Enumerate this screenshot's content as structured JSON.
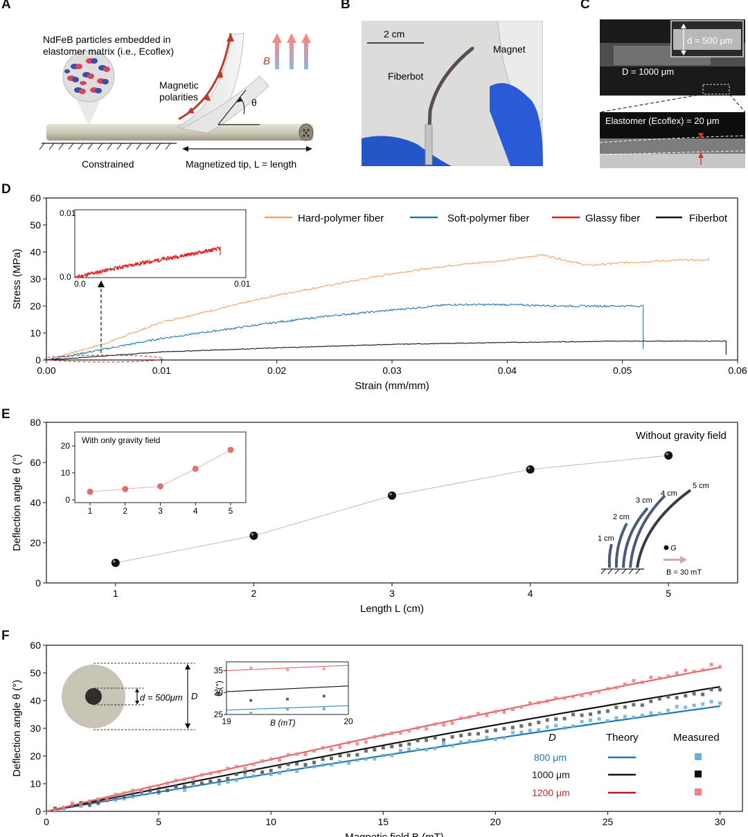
{
  "panels": {
    "A": {
      "letter": "A",
      "particles_label": "NdFeB particles embedded in elastomer matrix (i.e., Ecoflex)",
      "particles_line1": "NdFeB particles embedded in",
      "particles_line2": "elastomer matrix (i.e., Ecoflex)",
      "polarities_line1": "Magnetic",
      "polarities_line2": "polarities",
      "field_symbol": "B",
      "angle_symbol": "θ",
      "constrained_label": "Constrained",
      "tip_label": "Magnetized tip, L = length"
    },
    "B": {
      "letter": "B",
      "scale_label": "2 cm",
      "fiberbot_label": "Fiberbot",
      "magnet_label": "Magnet"
    },
    "C": {
      "letter": "C",
      "inner_label": "d = 500 μm",
      "outer_label": "D = 1000 μm",
      "elastomer_label": "Elastomer (Ecoflex) = 20 μm"
    }
  },
  "panel_D": {
    "letter": "D",
    "legend": [
      "Hard-polymer fiber",
      "Soft-polymer fiber",
      "Glassy fiber",
      "Fiberbot"
    ],
    "inset_ticks_x": [
      "0.0",
      "0.01"
    ],
    "inset_ticks_y": [
      "0.0",
      "0.01"
    ]
  },
  "panel_E": {
    "letter": "E",
    "main_note": "Without gravity field",
    "inset_title": "With only gravity field",
    "illustration_labels": [
      "1 cm",
      "2 cm",
      "3 cm",
      "4 cm",
      "5 cm"
    ],
    "gravity_symbol": "G",
    "field_label": "B = 30 mT"
  },
  "panel_F": {
    "letter": "F",
    "inner_d_label": "d = 500μm",
    "outer_D_label": "D",
    "legend_headers": [
      "D",
      "Theory",
      "Measured"
    ],
    "legend_rows": [
      {
        "label": "800 μm",
        "color": "#1f77b4",
        "light": "#6baed6"
      },
      {
        "label": "1000 μm",
        "color": "#000000",
        "light": "#555555"
      },
      {
        "label": "1200 μm",
        "color": "#d62728",
        "light": "#f08080"
      }
    ],
    "inset_ylabel": "θ (°)",
    "inset_xlabel": "B (mT)"
  },
  "colors": {
    "hard": "#f4a460",
    "soft": "#1f77b4",
    "glassy": "#e41a1c",
    "fiberbot": "#111111"
  },
  "chart_data": [
    {
      "id": "D",
      "type": "line",
      "title": "",
      "xlabel": "Strain (mm/mm)",
      "ylabel": "Stress (MPa)",
      "xlim": [
        0,
        0.06
      ],
      "ylim": [
        0,
        60
      ],
      "xticks": [
        "0.00",
        "0.01",
        "0.02",
        "0.03",
        "0.04",
        "0.05",
        "0.06"
      ],
      "yticks": [
        "0",
        "10",
        "20",
        "30",
        "40",
        "50",
        "60"
      ],
      "series": [
        {
          "name": "Hard-polymer fiber",
          "x": [
            0,
            0.005,
            0.01,
            0.015,
            0.02,
            0.025,
            0.03,
            0.035,
            0.04,
            0.043,
            0.045,
            0.047,
            0.05,
            0.055,
            0.0575
          ],
          "y": [
            0,
            6,
            14,
            19,
            24,
            28,
            32,
            35,
            37,
            39,
            37,
            35,
            36,
            37,
            38
          ]
        },
        {
          "name": "Soft-polymer fiber",
          "x": [
            0,
            0.005,
            0.01,
            0.015,
            0.02,
            0.025,
            0.03,
            0.035,
            0.04,
            0.045,
            0.05,
            0.0518,
            0.0518
          ],
          "y": [
            0,
            4,
            8,
            11,
            14,
            16.5,
            18.5,
            20.5,
            20.5,
            20,
            20,
            20,
            4
          ]
        },
        {
          "name": "Fiberbot",
          "x": [
            0,
            0.005,
            0.01,
            0.02,
            0.03,
            0.04,
            0.05,
            0.058,
            0.059,
            0.059
          ],
          "y": [
            0,
            1.5,
            3,
            4.5,
            5.8,
            6.5,
            7,
            7,
            7,
            2
          ]
        },
        {
          "name": "Glassy fiber",
          "x": [
            0,
            0.0015,
            0.003,
            0.0045,
            0.006,
            0.0075,
            0.0085,
            0.0085
          ],
          "y": [
            0,
            0.0009,
            0.0017,
            0.0024,
            0.0031,
            0.0038,
            0.0043,
            0.0033
          ]
        }
      ]
    },
    {
      "id": "E",
      "type": "scatter",
      "xlabel": "Length L (cm)",
      "ylabel": "Deflection angle θ (°)",
      "xlim": [
        0.5,
        5.5
      ],
      "ylim": [
        0,
        80
      ],
      "xticks": [
        "1",
        "2",
        "3",
        "4",
        "5"
      ],
      "yticks": [
        "0",
        "20",
        "40",
        "60",
        "80"
      ],
      "x": [
        1,
        2,
        3,
        4,
        5
      ],
      "y": [
        10,
        23.5,
        43.5,
        56.5,
        63.5
      ]
    },
    {
      "id": "E-inset",
      "type": "scatter",
      "title": "With only gravity field",
      "xlim": [
        0.5,
        5.5
      ],
      "ylim": [
        0,
        20
      ],
      "xticks": [
        "1",
        "2",
        "3",
        "4",
        "5"
      ],
      "yticks": [
        "0",
        "10",
        "20"
      ],
      "x": [
        1,
        2,
        3,
        4,
        5
      ],
      "y": [
        3,
        4,
        5,
        11.5,
        18.5
      ]
    },
    {
      "id": "F",
      "type": "line",
      "xlabel": "Magnetic field B (mT)",
      "ylabel": "Deflection angle θ (°)",
      "xlim": [
        0,
        31
      ],
      "ylim": [
        0,
        60
      ],
      "xticks": [
        "0",
        "5",
        "10",
        "15",
        "20",
        "25",
        "30"
      ],
      "yticks": [
        "0",
        "10",
        "20",
        "30",
        "40",
        "50",
        "60"
      ],
      "series": [
        {
          "name": "800 μm",
          "theory_end": 38,
          "measured_end": 39.5
        },
        {
          "name": "1000 μm",
          "theory_end": 45,
          "measured_end": 44
        },
        {
          "name": "1200 μm",
          "theory_end": 52,
          "measured_end": 53
        }
      ]
    },
    {
      "id": "F-inset",
      "type": "line",
      "xlim": [
        19,
        20
      ],
      "ylim": [
        25,
        37
      ],
      "xticks": [
        "19",
        "20"
      ],
      "yticks": [
        "25",
        "30",
        "35"
      ],
      "series": [
        {
          "name": "800 μm",
          "x": [
            19,
            20
          ],
          "y": [
            26,
            27
          ],
          "points_x": [
            19.2,
            19.5,
            19.8
          ],
          "points_y": [
            25.3,
            26.2,
            26.3
          ]
        },
        {
          "name": "1000 μm",
          "x": [
            19,
            20
          ],
          "y": [
            30.2,
            31.5
          ],
          "points_x": [
            19.2,
            19.5,
            19.8
          ],
          "points_y": [
            28.2,
            28.5,
            29.2
          ]
        },
        {
          "name": "1200 μm",
          "x": [
            19,
            20
          ],
          "y": [
            35,
            36.2
          ],
          "points_x": [
            19.2,
            19.5,
            19.8
          ],
          "points_y": [
            35.6,
            35.2,
            35.4
          ]
        }
      ]
    }
  ]
}
